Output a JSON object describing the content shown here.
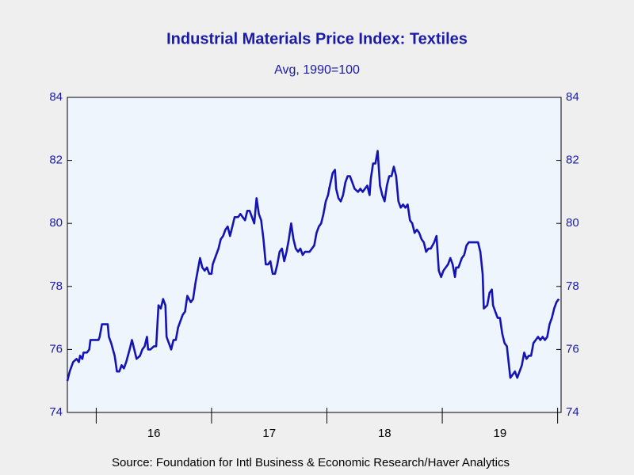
{
  "chart_data": {
    "type": "line",
    "title": "Industrial Materials Price Index: Textiles",
    "subtitle": "Avg, 1990=100",
    "source": "Source:  Foundation for Intl Business & Economic Research/Haver Analytics",
    "xlim": [
      2015.75,
      2020.03
    ],
    "xticks": [
      2016,
      2017,
      2018,
      2019,
      2020
    ],
    "year_labels": [
      "16",
      "17",
      "18",
      "19"
    ],
    "ylim": [
      74,
      84
    ],
    "yticks": [
      74,
      76,
      78,
      80,
      82,
      84
    ],
    "y2lim": [
      74,
      84
    ],
    "y2ticks": [
      74,
      76,
      78,
      80,
      82,
      84
    ],
    "color": "#1414b4",
    "x": [
      2015.75,
      2015.77,
      2015.8,
      2015.83,
      2015.85,
      2015.86,
      2015.88,
      2015.89,
      2015.92,
      2015.94,
      2015.95,
      2015.98,
      2016.0,
      2016.02,
      2016.03,
      2016.05,
      2016.08,
      2016.1,
      2016.11,
      2016.13,
      2016.16,
      2016.18,
      2016.2,
      2016.22,
      2016.24,
      2016.26,
      2016.29,
      2016.31,
      2016.33,
      2016.35,
      2016.38,
      2016.4,
      2016.42,
      2016.44,
      2016.45,
      2016.47,
      2016.5,
      2016.52,
      2016.54,
      2016.56,
      2016.58,
      2016.6,
      2016.61,
      2016.63,
      2016.65,
      2016.67,
      2016.69,
      2016.71,
      2016.73,
      2016.75,
      2016.77,
      2016.79,
      2016.82,
      2016.84,
      2016.86,
      2016.88,
      2016.9,
      2016.92,
      2016.94,
      2016.96,
      2016.98,
      2017.0,
      2017.01,
      2017.04,
      2017.06,
      2017.08,
      2017.1,
      2017.12,
      2017.14,
      2017.16,
      2017.18,
      2017.2,
      2017.23,
      2017.25,
      2017.27,
      2017.29,
      2017.31,
      2017.33,
      2017.35,
      2017.37,
      2017.39,
      2017.41,
      2017.43,
      2017.45,
      2017.47,
      2017.49,
      2017.51,
      2017.53,
      2017.55,
      2017.57,
      2017.59,
      2017.61,
      2017.63,
      2017.65,
      2017.67,
      2017.69,
      2017.71,
      2017.73,
      2017.75,
      2017.77,
      2017.79,
      2017.81,
      2017.85,
      2017.87,
      2017.89,
      2017.91,
      2017.93,
      2017.95,
      2017.97,
      2017.99,
      2018.01,
      2018.02,
      2018.05,
      2018.07,
      2018.08,
      2018.1,
      2018.12,
      2018.14,
      2018.16,
      2018.18,
      2018.2,
      2018.22,
      2018.24,
      2018.27,
      2018.29,
      2018.31,
      2018.33,
      2018.35,
      2018.37,
      2018.38,
      2018.4,
      2018.42,
      2018.44,
      2018.46,
      2018.48,
      2018.5,
      2018.52,
      2018.54,
      2018.56,
      2018.58,
      2018.6,
      2018.62,
      2018.64,
      2018.66,
      2018.68,
      2018.7,
      2018.72,
      2018.74,
      2018.76,
      2018.78,
      2018.8,
      2018.82,
      2018.84,
      2018.86,
      2018.88,
      2018.9,
      2018.93,
      2018.95,
      2018.97,
      2018.99,
      2019.01,
      2019.03,
      2019.05,
      2019.07,
      2019.09,
      2019.11,
      2019.12,
      2019.14,
      2019.17,
      2019.19,
      2019.21,
      2019.23,
      2019.25,
      2019.27,
      2019.29,
      2019.31,
      2019.33,
      2019.35,
      2019.36,
      2019.39,
      2019.41,
      2019.43,
      2019.44,
      2019.46,
      2019.48,
      2019.5,
      2019.52,
      2019.54,
      2019.56,
      2019.59,
      2019.61,
      2019.63,
      2019.65,
      2019.67,
      2019.69,
      2019.71,
      2019.73,
      2019.75,
      2019.77,
      2019.79,
      2019.81,
      2019.83,
      2019.85,
      2019.87,
      2019.89,
      2019.91,
      2019.93,
      2019.95,
      2019.97,
      2019.99,
      2020.01
    ],
    "values": [
      75.0,
      75.3,
      75.6,
      75.7,
      75.6,
      75.8,
      75.7,
      75.9,
      75.9,
      76.0,
      76.3,
      76.3,
      76.3,
      76.3,
      76.4,
      76.8,
      76.8,
      76.8,
      76.4,
      76.2,
      75.8,
      75.3,
      75.3,
      75.5,
      75.4,
      75.6,
      76.0,
      76.3,
      76.0,
      75.7,
      75.8,
      76.0,
      76.1,
      76.4,
      76.0,
      76.0,
      76.1,
      76.1,
      77.4,
      77.3,
      77.6,
      77.4,
      76.4,
      76.2,
      76.0,
      76.3,
      76.3,
      76.7,
      76.9,
      77.1,
      77.2,
      77.7,
      77.5,
      77.6,
      78.1,
      78.5,
      78.9,
      78.6,
      78.5,
      78.6,
      78.4,
      78.4,
      78.7,
      79.0,
      79.2,
      79.5,
      79.6,
      79.8,
      79.9,
      79.6,
      79.9,
      80.2,
      80.2,
      80.3,
      80.2,
      80.1,
      80.4,
      80.4,
      80.2,
      80.0,
      80.8,
      80.3,
      80.1,
      79.5,
      78.7,
      78.7,
      78.8,
      78.4,
      78.4,
      78.7,
      79.1,
      79.2,
      78.8,
      79.1,
      79.5,
      80.0,
      79.5,
      79.2,
      79.1,
      79.2,
      79.0,
      79.1,
      79.1,
      79.2,
      79.3,
      79.7,
      79.9,
      80.0,
      80.3,
      80.7,
      80.9,
      81.1,
      81.6,
      81.7,
      81.1,
      80.8,
      80.7,
      80.9,
      81.3,
      81.5,
      81.5,
      81.3,
      81.1,
      81.0,
      81.1,
      81.0,
      81.1,
      81.2,
      80.9,
      81.4,
      81.9,
      81.9,
      82.3,
      81.2,
      80.9,
      80.7,
      81.2,
      81.5,
      81.5,
      81.8,
      81.5,
      80.7,
      80.5,
      80.6,
      80.5,
      80.6,
      80.1,
      80.0,
      79.7,
      79.8,
      79.7,
      79.5,
      79.4,
      79.1,
      79.2,
      79.2,
      79.4,
      79.6,
      78.5,
      78.3,
      78.5,
      78.6,
      78.7,
      78.9,
      78.7,
      78.3,
      78.6,
      78.6,
      78.9,
      79.0,
      79.3,
      79.4,
      79.4,
      79.4,
      79.4,
      79.4,
      79.1,
      78.4,
      77.3,
      77.4,
      77.8,
      77.9,
      77.4,
      77.2,
      77.0,
      77.0,
      76.5,
      76.2,
      76.1,
      75.1,
      75.2,
      75.3,
      75.1,
      75.3,
      75.5,
      75.9,
      75.7,
      75.8,
      75.8,
      76.2,
      76.3,
      76.4,
      76.3,
      76.4,
      76.3,
      76.4,
      76.8,
      77.0,
      77.3,
      77.5,
      77.6
    ]
  }
}
